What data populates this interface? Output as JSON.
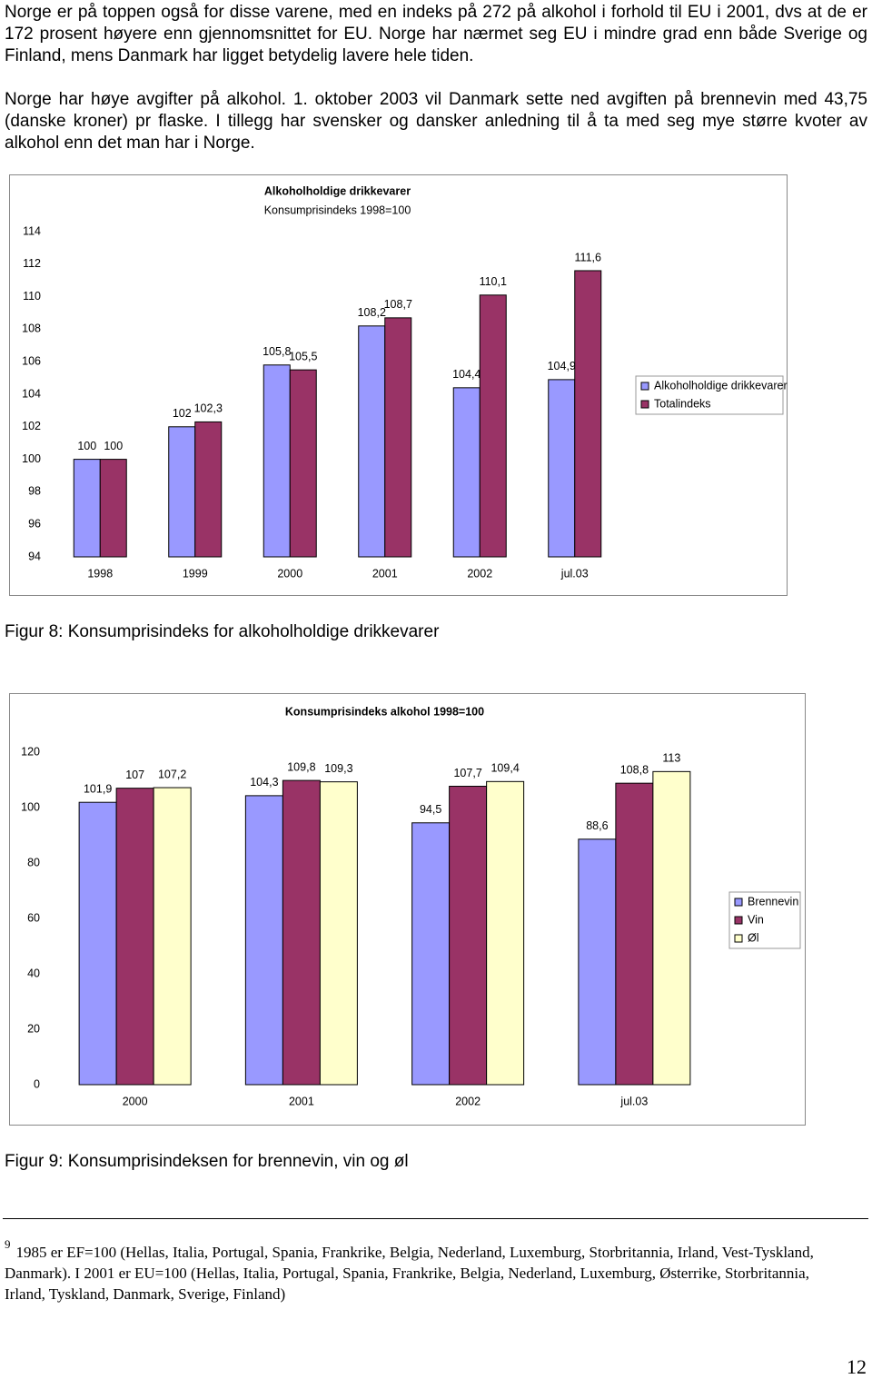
{
  "paragraphs": [
    "Norge er på toppen også for disse varene, med en indeks på 272 på alkohol i forhold til EU i 2001, dvs at de er 172 prosent høyere enn gjennomsnittet for EU. Norge har nærmet seg EU i mindre grad enn både Sverige og Finland, mens Danmark har ligget betydelig lavere hele tiden.",
    "Norge har høye avgifter på alkohol. 1. oktober 2003 vil Danmark sette ned avgiften på brennevin med 43,75 (danske kroner) pr flaske. I tillegg har svensker og dansker anledning til å ta med seg mye større kvoter av alkohol enn det man har i Norge."
  ],
  "chart_data": [
    {
      "type": "bar",
      "title": "Alkoholholdige drikkevarer",
      "subtitle": "Konsumprisindeks 1998=100",
      "categories": [
        "1998",
        "1999",
        "2000",
        "2001",
        "2002",
        "jul.03"
      ],
      "series": [
        {
          "name": "Alkoholholdige drikkevarer",
          "color": "#9999ff",
          "values": [
            100,
            102,
            105.8,
            108.2,
            104.4,
            104.9
          ],
          "value_labels": [
            "100",
            "102",
            "105,8",
            "108,2",
            "104,4",
            "104,9"
          ]
        },
        {
          "name": "Totalindeks",
          "color": "#993366",
          "values": [
            100,
            102.3,
            105.5,
            108.7,
            110.1,
            111.6
          ],
          "value_labels": [
            "100",
            "102,3",
            "105,5",
            "108,7",
            "110,1",
            "111,6"
          ]
        }
      ],
      "ylim": [
        94,
        114
      ],
      "yticks": [
        94,
        96,
        98,
        100,
        102,
        104,
        106,
        108,
        110,
        112,
        114
      ],
      "grid": false,
      "legend": "right"
    },
    {
      "type": "bar",
      "title": "Konsumprisindeks alkohol 1998=100",
      "categories": [
        "2000",
        "2001",
        "2002",
        "jul.03"
      ],
      "series": [
        {
          "name": "Brennevin",
          "color": "#9999ff",
          "values": [
            101.9,
            104.3,
            94.5,
            88.6
          ],
          "value_labels": [
            "101,9",
            "104,3",
            "94,5",
            "88,6"
          ]
        },
        {
          "name": "Vin",
          "color": "#993366",
          "values": [
            107,
            109.8,
            107.7,
            108.8
          ],
          "value_labels": [
            "107",
            "109,8",
            "107,7",
            "108,8"
          ]
        },
        {
          "name": "Øl",
          "color": "#ffffcc",
          "values": [
            107.2,
            109.3,
            109.4,
            113
          ],
          "value_labels": [
            "107,2",
            "109,3",
            "109,4",
            "113"
          ]
        }
      ],
      "ylim": [
        0,
        120
      ],
      "yticks": [
        0,
        20,
        40,
        60,
        80,
        100,
        120
      ],
      "grid": false,
      "legend": "right"
    }
  ],
  "captions": [
    "Figur 8: Konsumprisindeks for alkoholholdige drikkevarer",
    "Figur 9:  Konsumprisindeksen for brennevin, vin og øl"
  ],
  "footnote": {
    "number": "9",
    "text": "1985 er EF=100 (Hellas, Italia, Portugal, Spania, Frankrike, Belgia, Nederland, Luxemburg, Storbritannia, Irland, Vest-Tyskland, Danmark). I 2001 er EU=100 (Hellas, Italia, Portugal, Spania, Frankrike, Belgia, Nederland, Luxemburg, Østerrike, Storbritannia, Irland, Tyskland, Danmark, Sverige, Finland)"
  },
  "page_number": "12"
}
